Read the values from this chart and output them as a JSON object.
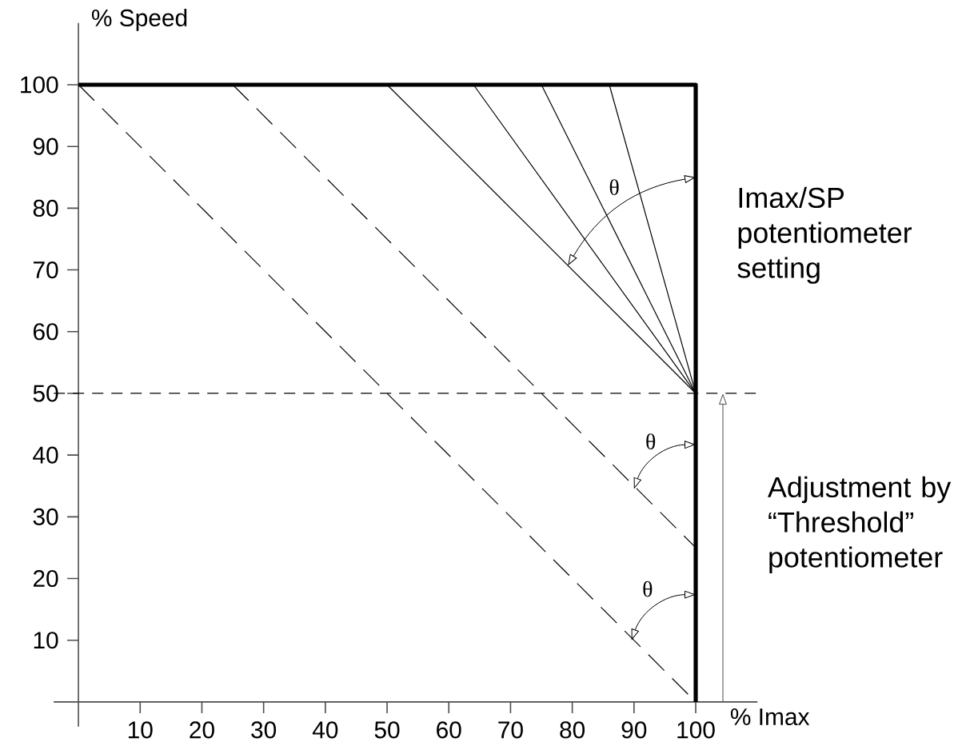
{
  "chart_data": {
    "type": "line",
    "xlabel": "% Imax",
    "ylabel": "% Speed",
    "xlim": [
      -4,
      110
    ],
    "ylim": [
      -4,
      110
    ],
    "xticks": [
      10,
      20,
      30,
      40,
      50,
      60,
      70,
      80,
      90,
      100
    ],
    "yticks": [
      10,
      20,
      30,
      40,
      50,
      60,
      70,
      80,
      90,
      100
    ],
    "grid": false,
    "marker": "none",
    "series": [
      {
        "color": "#000000",
        "line_style": "solid",
        "x": [
          0,
          100,
          100
        ],
        "values": [
          100,
          100,
          0
        ]
      },
      {
        "color": "#000000",
        "line_style": "solid",
        "x": [
          100,
          50
        ],
        "values": [
          50,
          100
        ]
      },
      {
        "color": "#000000",
        "line_style": "solid",
        "x": [
          100,
          64
        ],
        "values": [
          50,
          100
        ]
      },
      {
        "color": "#000000",
        "line_style": "solid",
        "x": [
          100,
          75
        ],
        "values": [
          50,
          100
        ]
      },
      {
        "color": "#000000",
        "line_style": "solid",
        "x": [
          100,
          86
        ],
        "values": [
          50,
          100
        ]
      },
      {
        "color": "#000000",
        "line_style": "dashed",
        "x": [
          0,
          100
        ],
        "values": [
          100,
          0
        ]
      },
      {
        "color": "#000000",
        "line_style": "dashed",
        "x": [
          25,
          100
        ],
        "values": [
          100,
          25
        ]
      }
    ],
    "ref_lines": [
      {
        "axis": "y",
        "value": 50,
        "line_style": "dashed",
        "color": "#000000"
      }
    ],
    "annotations": [
      "θ",
      "θ",
      "θ",
      "Imax/SP potentiometer setting",
      "Adjustment by “Threshold” potentiometer"
    ]
  }
}
